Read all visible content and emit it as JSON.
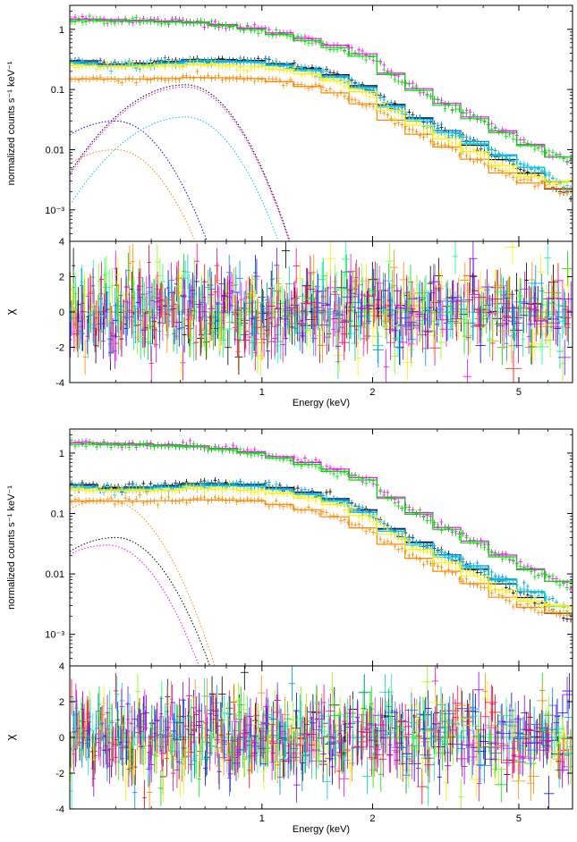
{
  "figure": {
    "colors": [
      "#000000",
      "#ff0000",
      "#00dd00",
      "#0000ff",
      "#00cccc",
      "#ff00ff",
      "#ffee00",
      "#ff8800",
      "#88ff00",
      "#00ff88",
      "#0088ff",
      "#8800ff",
      "#ff0088"
    ],
    "colors_note_free": true
  },
  "chart_data": [
    {
      "type": "line",
      "panel": "top-spectrum",
      "xscale": "log",
      "yscale": "log",
      "xlim": [
        0.3,
        7.0
      ],
      "ylim": [
        0.0003,
        2.5
      ],
      "ylabel": "normalized counts s⁻¹ keV⁻¹",
      "yticks": [
        1,
        0.1,
        0.01,
        0.001
      ],
      "yticklabels": [
        "1",
        "0.1",
        "0.01",
        "10⁻³"
      ],
      "series": [
        {
          "color": "#ff00ff",
          "x": [
            0.3,
            0.5,
            0.7,
            1.0,
            1.5,
            2.0,
            2.2,
            3.0,
            4.0,
            5.0,
            6.0,
            7.0
          ],
          "y": [
            1.5,
            1.4,
            1.3,
            1.0,
            0.6,
            0.35,
            0.2,
            0.07,
            0.03,
            0.015,
            0.009,
            0.006
          ]
        },
        {
          "color": "#00dd00",
          "x": [
            0.3,
            0.5,
            0.7,
            1.0,
            1.5,
            2.0,
            2.2,
            3.0,
            4.0,
            5.0,
            6.0,
            7.0
          ],
          "y": [
            1.4,
            1.35,
            1.25,
            0.95,
            0.55,
            0.32,
            0.19,
            0.065,
            0.028,
            0.014,
            0.009,
            0.006
          ]
        },
        {
          "color": "#000000",
          "x": [
            0.3,
            0.4,
            0.5,
            0.7,
            1.0,
            1.5,
            2.0,
            2.3,
            3.0,
            4.0,
            5.0,
            6.0,
            7.0
          ],
          "y": [
            0.32,
            0.26,
            0.28,
            0.32,
            0.3,
            0.2,
            0.1,
            0.05,
            0.025,
            0.01,
            0.005,
            0.003,
            0.0015
          ]
        },
        {
          "color": "#0088ff",
          "x": [
            0.3,
            0.4,
            0.5,
            0.7,
            1.0,
            1.5,
            2.0,
            2.3,
            3.0,
            4.0,
            5.0,
            6.0,
            7.0
          ],
          "y": [
            0.3,
            0.25,
            0.27,
            0.3,
            0.29,
            0.19,
            0.095,
            0.048,
            0.024,
            0.012,
            0.006,
            0.004,
            0.002
          ]
        },
        {
          "color": "#00cccc",
          "x": [
            0.3,
            0.4,
            0.5,
            0.7,
            1.0,
            1.5,
            2.0,
            2.3,
            3.0,
            4.0,
            5.0,
            6.0,
            7.0
          ],
          "y": [
            0.28,
            0.24,
            0.26,
            0.29,
            0.28,
            0.18,
            0.09,
            0.045,
            0.022,
            0.011,
            0.006,
            0.004,
            0.002
          ]
        },
        {
          "color": "#ff8800",
          "x": [
            0.3,
            0.5,
            0.7,
            1.0,
            1.5,
            2.0,
            2.3,
            3.0,
            4.0,
            5.0,
            6.0,
            7.0
          ],
          "y": [
            0.15,
            0.15,
            0.16,
            0.15,
            0.1,
            0.05,
            0.028,
            0.013,
            0.006,
            0.003,
            0.0025,
            0.002
          ]
        },
        {
          "color": "#ffee00",
          "x": [
            0.3,
            0.5,
            0.7,
            1.0,
            1.5,
            2.0,
            2.3,
            3.0,
            4.0,
            5.0,
            6.0,
            7.0
          ],
          "y": [
            0.25,
            0.24,
            0.26,
            0.24,
            0.16,
            0.08,
            0.04,
            0.018,
            0.008,
            0.004,
            0.003,
            0.003
          ]
        }
      ],
      "components": [
        {
          "color": "#000000",
          "peak_x": 0.62,
          "peak_y": 0.12
        },
        {
          "color": "#ff00ff",
          "peak_x": 0.62,
          "peak_y": 0.11
        },
        {
          "color": "#0000ff",
          "peak_x": 0.4,
          "peak_y": 0.03
        },
        {
          "color": "#00cccc",
          "peak_x": 0.62,
          "peak_y": 0.035
        },
        {
          "color": "#ff8800",
          "peak_x": 0.4,
          "peak_y": 0.01
        }
      ]
    },
    {
      "type": "scatter",
      "panel": "top-residuals",
      "xscale": "log",
      "xlim": [
        0.3,
        7.0
      ],
      "ylim": [
        -4,
        4
      ],
      "ylabel": "χ",
      "xlabel": "Energy (keV)",
      "yticks": [
        -4,
        -2,
        0,
        2,
        4
      ],
      "xticks": [
        1,
        2,
        5
      ],
      "xticklabels": [
        "1",
        "2",
        "5"
      ]
    },
    {
      "type": "line",
      "panel": "bottom-spectrum",
      "xscale": "log",
      "yscale": "log",
      "xlim": [
        0.3,
        7.0
      ],
      "ylim": [
        0.0003,
        2.5
      ],
      "ylabel": "normalized counts s⁻¹ keV⁻¹",
      "yticks": [
        1,
        0.1,
        0.01,
        0.001
      ],
      "yticklabels": [
        "1",
        "0.1",
        "0.01",
        "10⁻³"
      ],
      "series": [
        {
          "color": "#ff00ff",
          "x": [
            0.3,
            0.5,
            0.7,
            1.0,
            1.5,
            2.0,
            2.2,
            3.0,
            4.0,
            5.0,
            6.0,
            7.0
          ],
          "y": [
            1.5,
            1.4,
            1.3,
            1.0,
            0.6,
            0.35,
            0.2,
            0.07,
            0.03,
            0.015,
            0.009,
            0.006
          ]
        },
        {
          "color": "#00dd00",
          "x": [
            0.3,
            0.5,
            0.7,
            1.0,
            1.5,
            2.0,
            2.2,
            3.0,
            4.0,
            5.0,
            6.0,
            7.0
          ],
          "y": [
            1.4,
            1.35,
            1.25,
            0.95,
            0.55,
            0.32,
            0.19,
            0.065,
            0.028,
            0.014,
            0.009,
            0.006
          ]
        },
        {
          "color": "#000000",
          "x": [
            0.3,
            0.4,
            0.5,
            0.7,
            1.0,
            1.5,
            2.0,
            2.3,
            3.0,
            4.0,
            5.0,
            6.0,
            7.0
          ],
          "y": [
            0.32,
            0.26,
            0.28,
            0.32,
            0.3,
            0.2,
            0.1,
            0.05,
            0.025,
            0.01,
            0.005,
            0.003,
            0.0015
          ]
        },
        {
          "color": "#0088ff",
          "x": [
            0.3,
            0.4,
            0.5,
            0.7,
            1.0,
            1.5,
            2.0,
            2.3,
            3.0,
            4.0,
            5.0,
            6.0,
            7.0
          ],
          "y": [
            0.3,
            0.25,
            0.27,
            0.3,
            0.29,
            0.19,
            0.095,
            0.048,
            0.024,
            0.012,
            0.006,
            0.004,
            0.002
          ]
        },
        {
          "color": "#00cccc",
          "x": [
            0.3,
            0.4,
            0.5,
            0.7,
            1.0,
            1.5,
            2.0,
            2.3,
            3.0,
            4.0,
            5.0,
            6.0,
            7.0
          ],
          "y": [
            0.28,
            0.24,
            0.26,
            0.29,
            0.28,
            0.18,
            0.09,
            0.045,
            0.022,
            0.011,
            0.006,
            0.004,
            0.002
          ]
        },
        {
          "color": "#ff8800",
          "x": [
            0.3,
            0.5,
            0.7,
            1.0,
            1.5,
            2.0,
            2.3,
            3.0,
            4.0,
            5.0,
            6.0,
            7.0
          ],
          "y": [
            0.16,
            0.16,
            0.17,
            0.16,
            0.1,
            0.05,
            0.028,
            0.013,
            0.006,
            0.003,
            0.0025,
            0.002
          ]
        },
        {
          "color": "#ffee00",
          "x": [
            0.3,
            0.5,
            0.7,
            1.0,
            1.5,
            2.0,
            2.3,
            3.0,
            4.0,
            5.0,
            6.0,
            7.0
          ],
          "y": [
            0.25,
            0.24,
            0.26,
            0.24,
            0.16,
            0.08,
            0.04,
            0.018,
            0.008,
            0.004,
            0.003,
            0.003
          ]
        }
      ],
      "components": [
        {
          "color": "#ff8800",
          "peak_x": 0.38,
          "peak_y": 0.17
        },
        {
          "color": "#000000",
          "peak_x": 0.4,
          "peak_y": 0.04
        },
        {
          "color": "#ff00ff",
          "peak_x": 0.38,
          "peak_y": 0.03
        }
      ]
    },
    {
      "type": "scatter",
      "panel": "bottom-residuals",
      "xscale": "log",
      "xlim": [
        0.3,
        7.0
      ],
      "ylim": [
        -4,
        4
      ],
      "ylabel": "χ",
      "xlabel": "Energy (keV)",
      "yticks": [
        -4,
        -2,
        0,
        2,
        4
      ],
      "xticks": [
        1,
        2,
        5
      ],
      "xticklabels": [
        "1",
        "2",
        "5"
      ]
    }
  ]
}
